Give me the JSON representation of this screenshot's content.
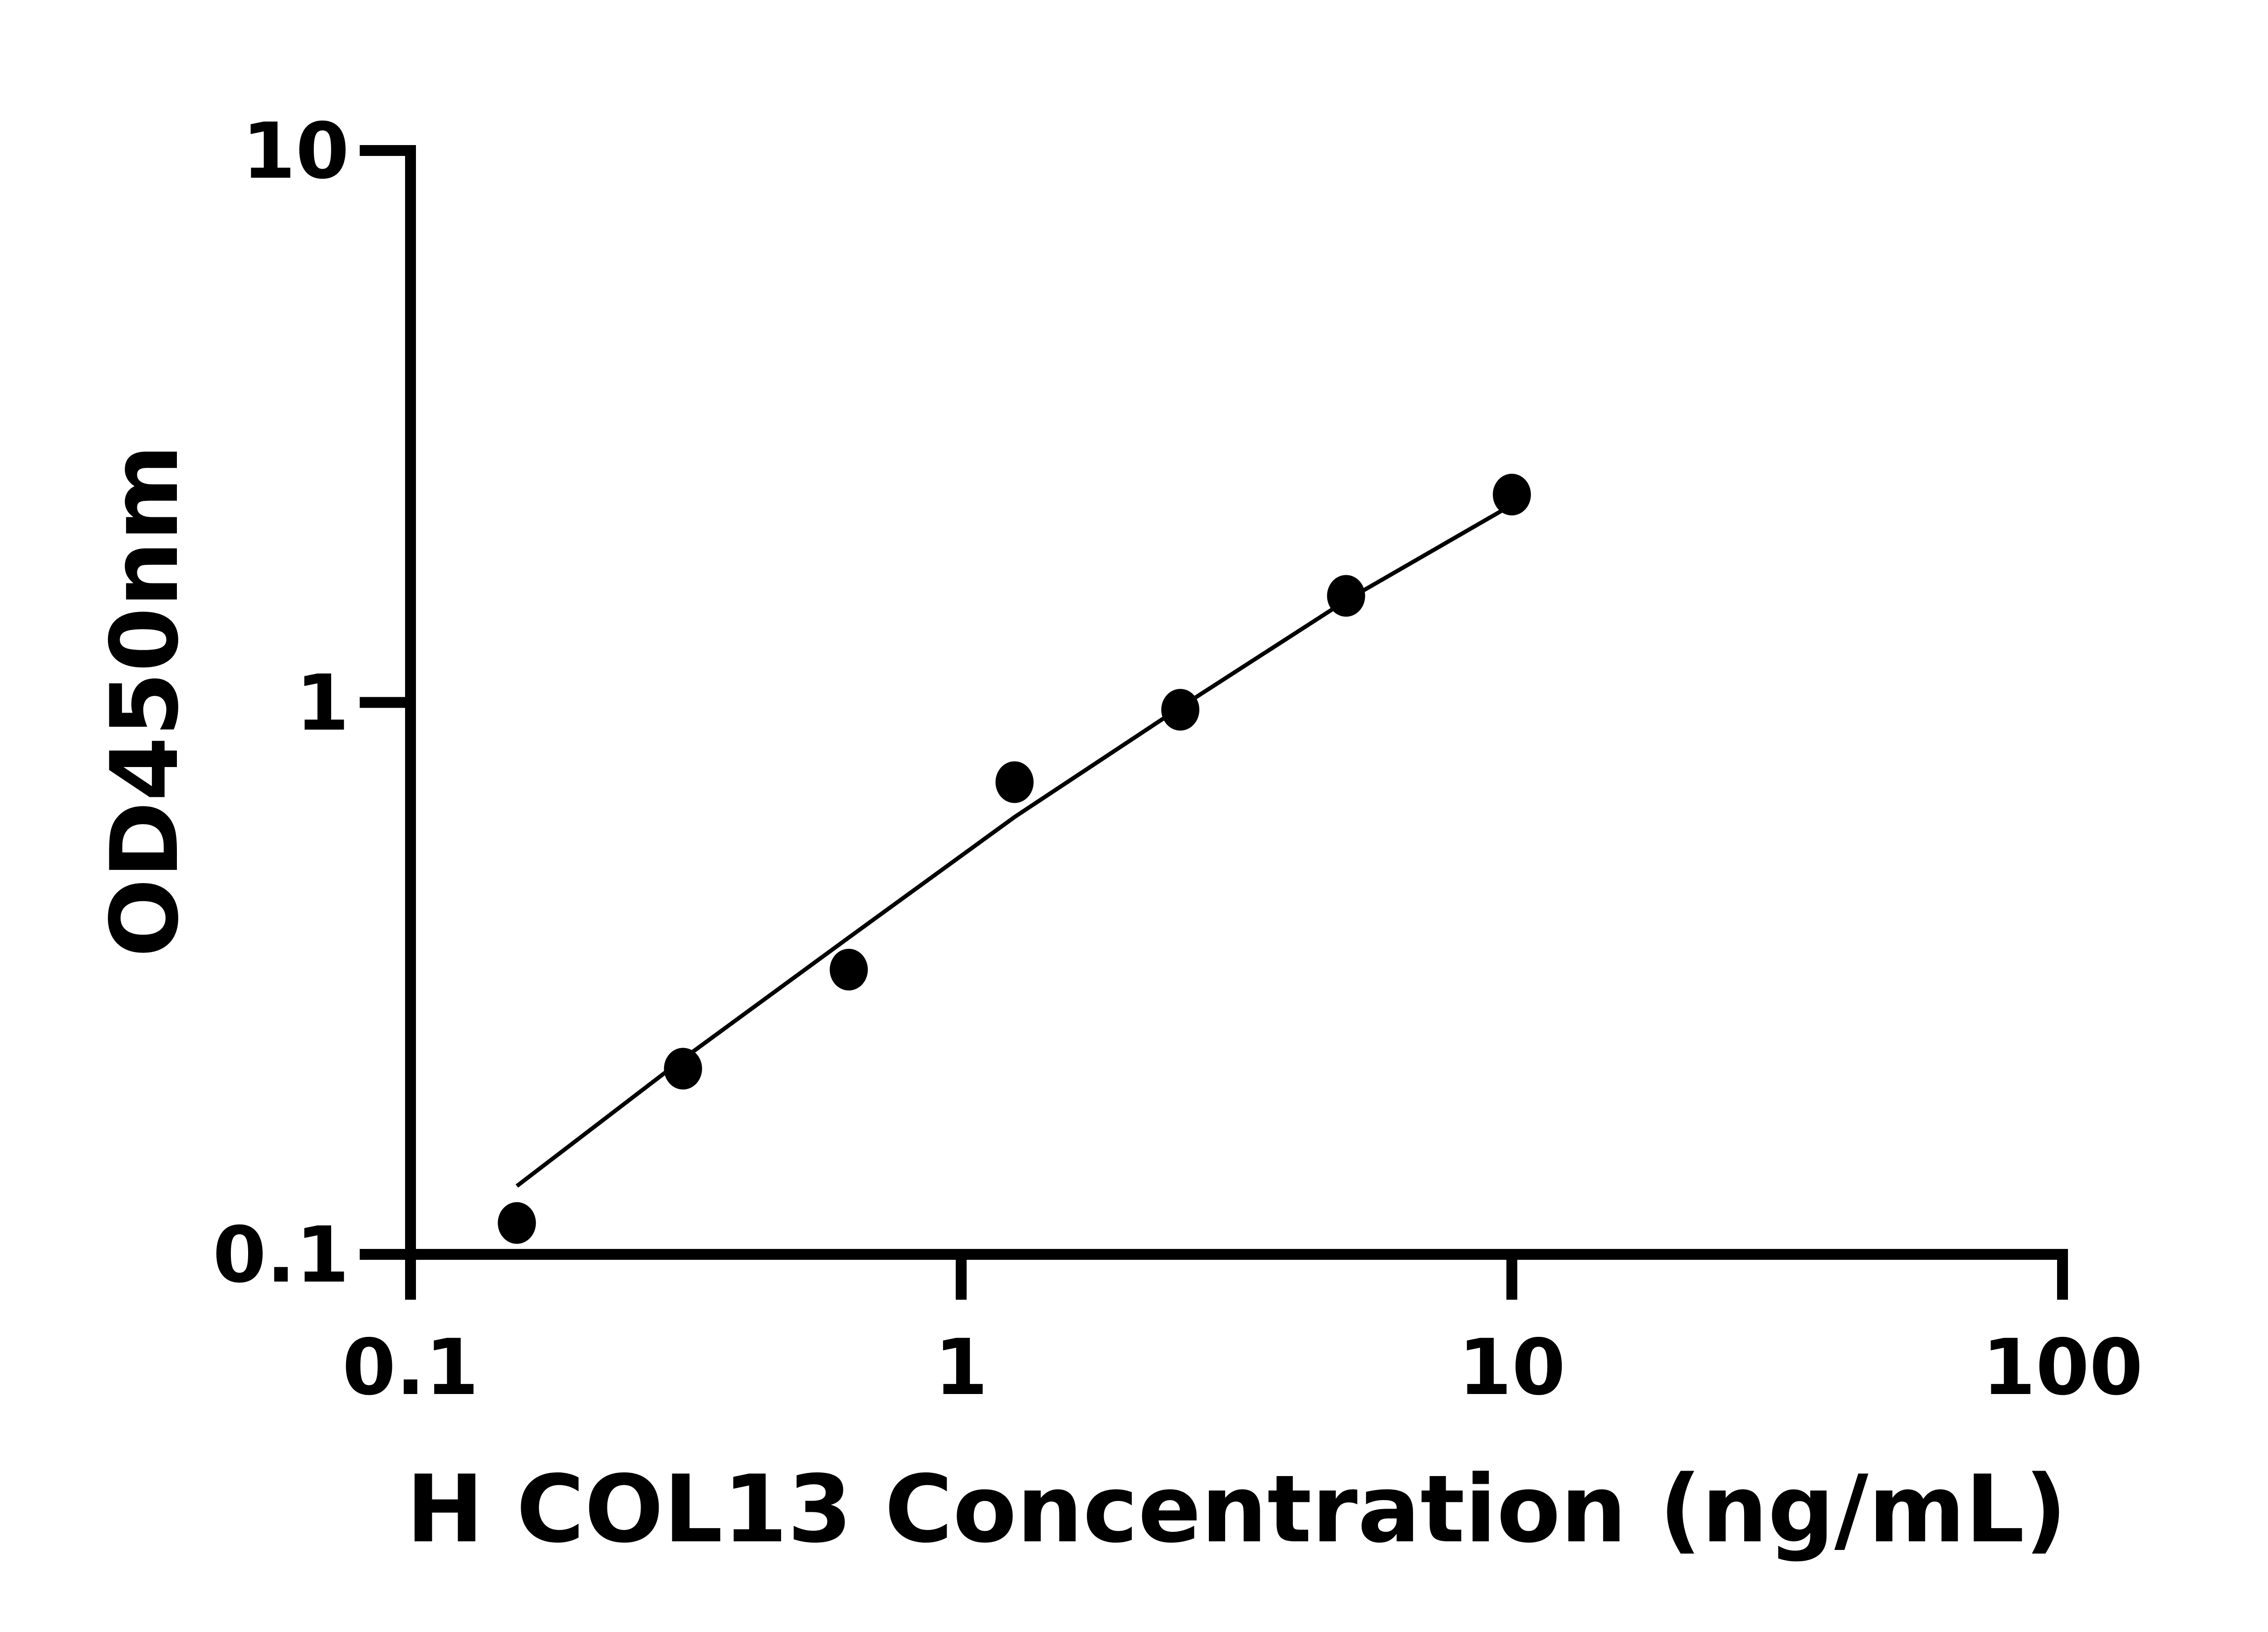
{
  "chart_data": {
    "type": "scatter",
    "title": "",
    "xlabel": "H COL13 Concentration (ng/mL)",
    "ylabel": "OD450nm",
    "x_scale": "log",
    "y_scale": "log",
    "xlim": [
      0.1,
      100
    ],
    "ylim": [
      0.1,
      10
    ],
    "x_ticks": [
      "0.1",
      "1",
      "10",
      "100"
    ],
    "y_ticks": [
      "0.1",
      "1",
      "10"
    ],
    "grid": false,
    "legend": "none",
    "colors": {
      "marker": "#000000",
      "line": "#000000",
      "axis": "#000000"
    },
    "series": [
      {
        "x": [
          0.156,
          0.3125,
          0.625,
          1.25,
          2.5,
          5,
          10
        ],
        "y": [
          0.114,
          0.217,
          0.328,
          0.717,
          0.97,
          1.56,
          2.38
        ]
      }
    ],
    "fit_curve": {
      "x": [
        0.156,
        0.3125,
        0.625,
        1.25,
        2.5,
        5,
        10
      ],
      "y": [
        0.133,
        0.226,
        0.375,
        0.62,
        0.98,
        1.53,
        2.28
      ]
    }
  }
}
